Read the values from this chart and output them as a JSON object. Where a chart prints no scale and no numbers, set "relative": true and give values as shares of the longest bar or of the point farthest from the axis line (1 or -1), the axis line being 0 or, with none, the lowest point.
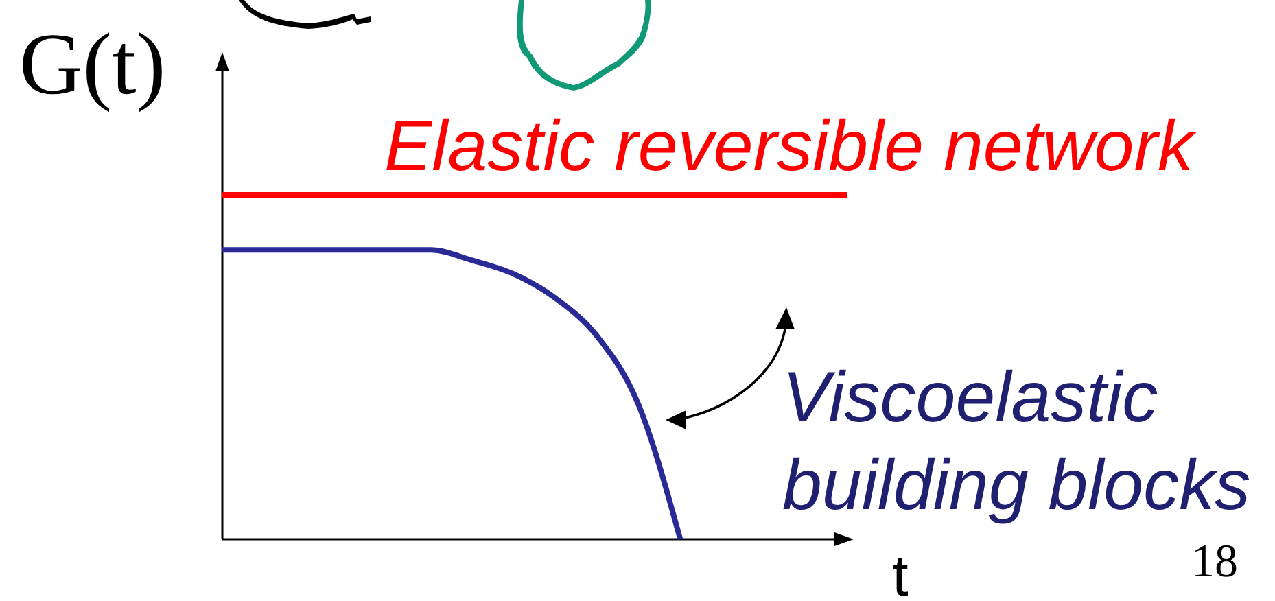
{
  "chart_data": {
    "type": "line",
    "relative": true,
    "xlabel": "t",
    "ylabel": "G(t)",
    "annotations": [
      "18"
    ],
    "marker": "none",
    "line_style": "solid",
    "categories": [
      null,
      null,
      null,
      null,
      null,
      null,
      null,
      null,
      null,
      null,
      null,
      null,
      null,
      null,
      null,
      null
    ],
    "series": [
      {
        "name": "Elastic reversible network",
        "color": "#ff0000",
        "values": [
          1,
          1,
          1,
          1,
          1,
          1,
          1,
          1,
          1,
          1,
          1,
          1,
          1,
          1,
          1,
          1
        ]
      },
      {
        "name": "Viscoelastic building blocks",
        "color": "#2a2a96",
        "values": [
          0.84,
          0.84,
          0.84,
          0.84,
          0.84,
          0.84,
          0.81,
          0.77,
          0.7,
          0.59,
          0.39,
          0,
          null,
          null,
          null,
          null
        ]
      }
    ]
  }
}
